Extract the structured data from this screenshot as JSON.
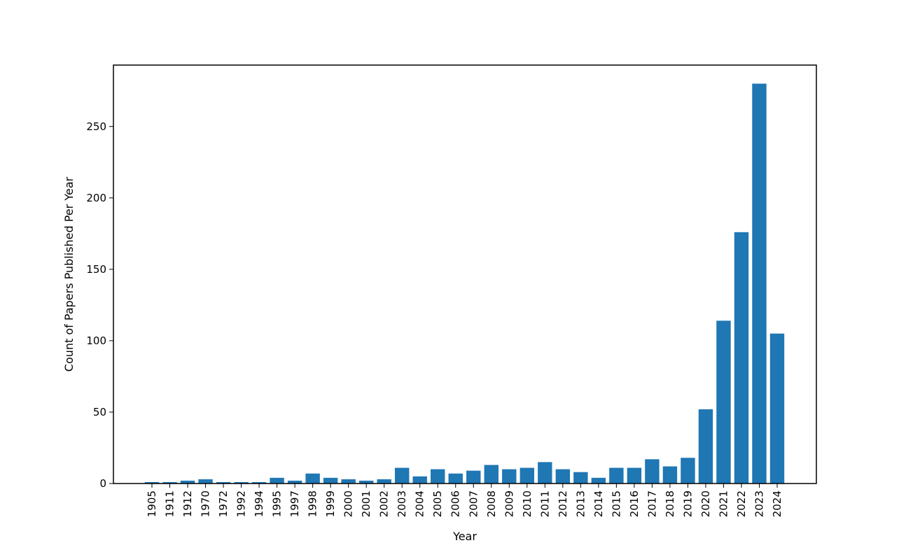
{
  "chart_data": {
    "type": "bar",
    "xlabel": "Year",
    "ylabel": "Count of Papers Published Per Year",
    "ylim": [
      0,
      280
    ],
    "yticks": [
      0,
      50,
      100,
      150,
      200,
      250
    ],
    "grid": false,
    "bar_color": "#1f77b4",
    "categories": [
      "1905",
      "1911",
      "1912",
      "1970",
      "1972",
      "1992",
      "1994",
      "1995",
      "1997",
      "1998",
      "1999",
      "2000",
      "2001",
      "2002",
      "2003",
      "2004",
      "2005",
      "2006",
      "2007",
      "2008",
      "2009",
      "2010",
      "2011",
      "2012",
      "2013",
      "2014",
      "2015",
      "2016",
      "2017",
      "2018",
      "2019",
      "2020",
      "2021",
      "2022",
      "2023",
      "2024"
    ],
    "values": [
      1,
      1,
      2,
      3,
      1,
      1,
      1,
      4,
      2,
      7,
      4,
      3,
      2,
      3,
      11,
      5,
      10,
      7,
      9,
      13,
      10,
      11,
      15,
      10,
      8,
      4,
      11,
      11,
      17,
      12,
      18,
      52,
      114,
      176,
      280,
      105
    ]
  }
}
